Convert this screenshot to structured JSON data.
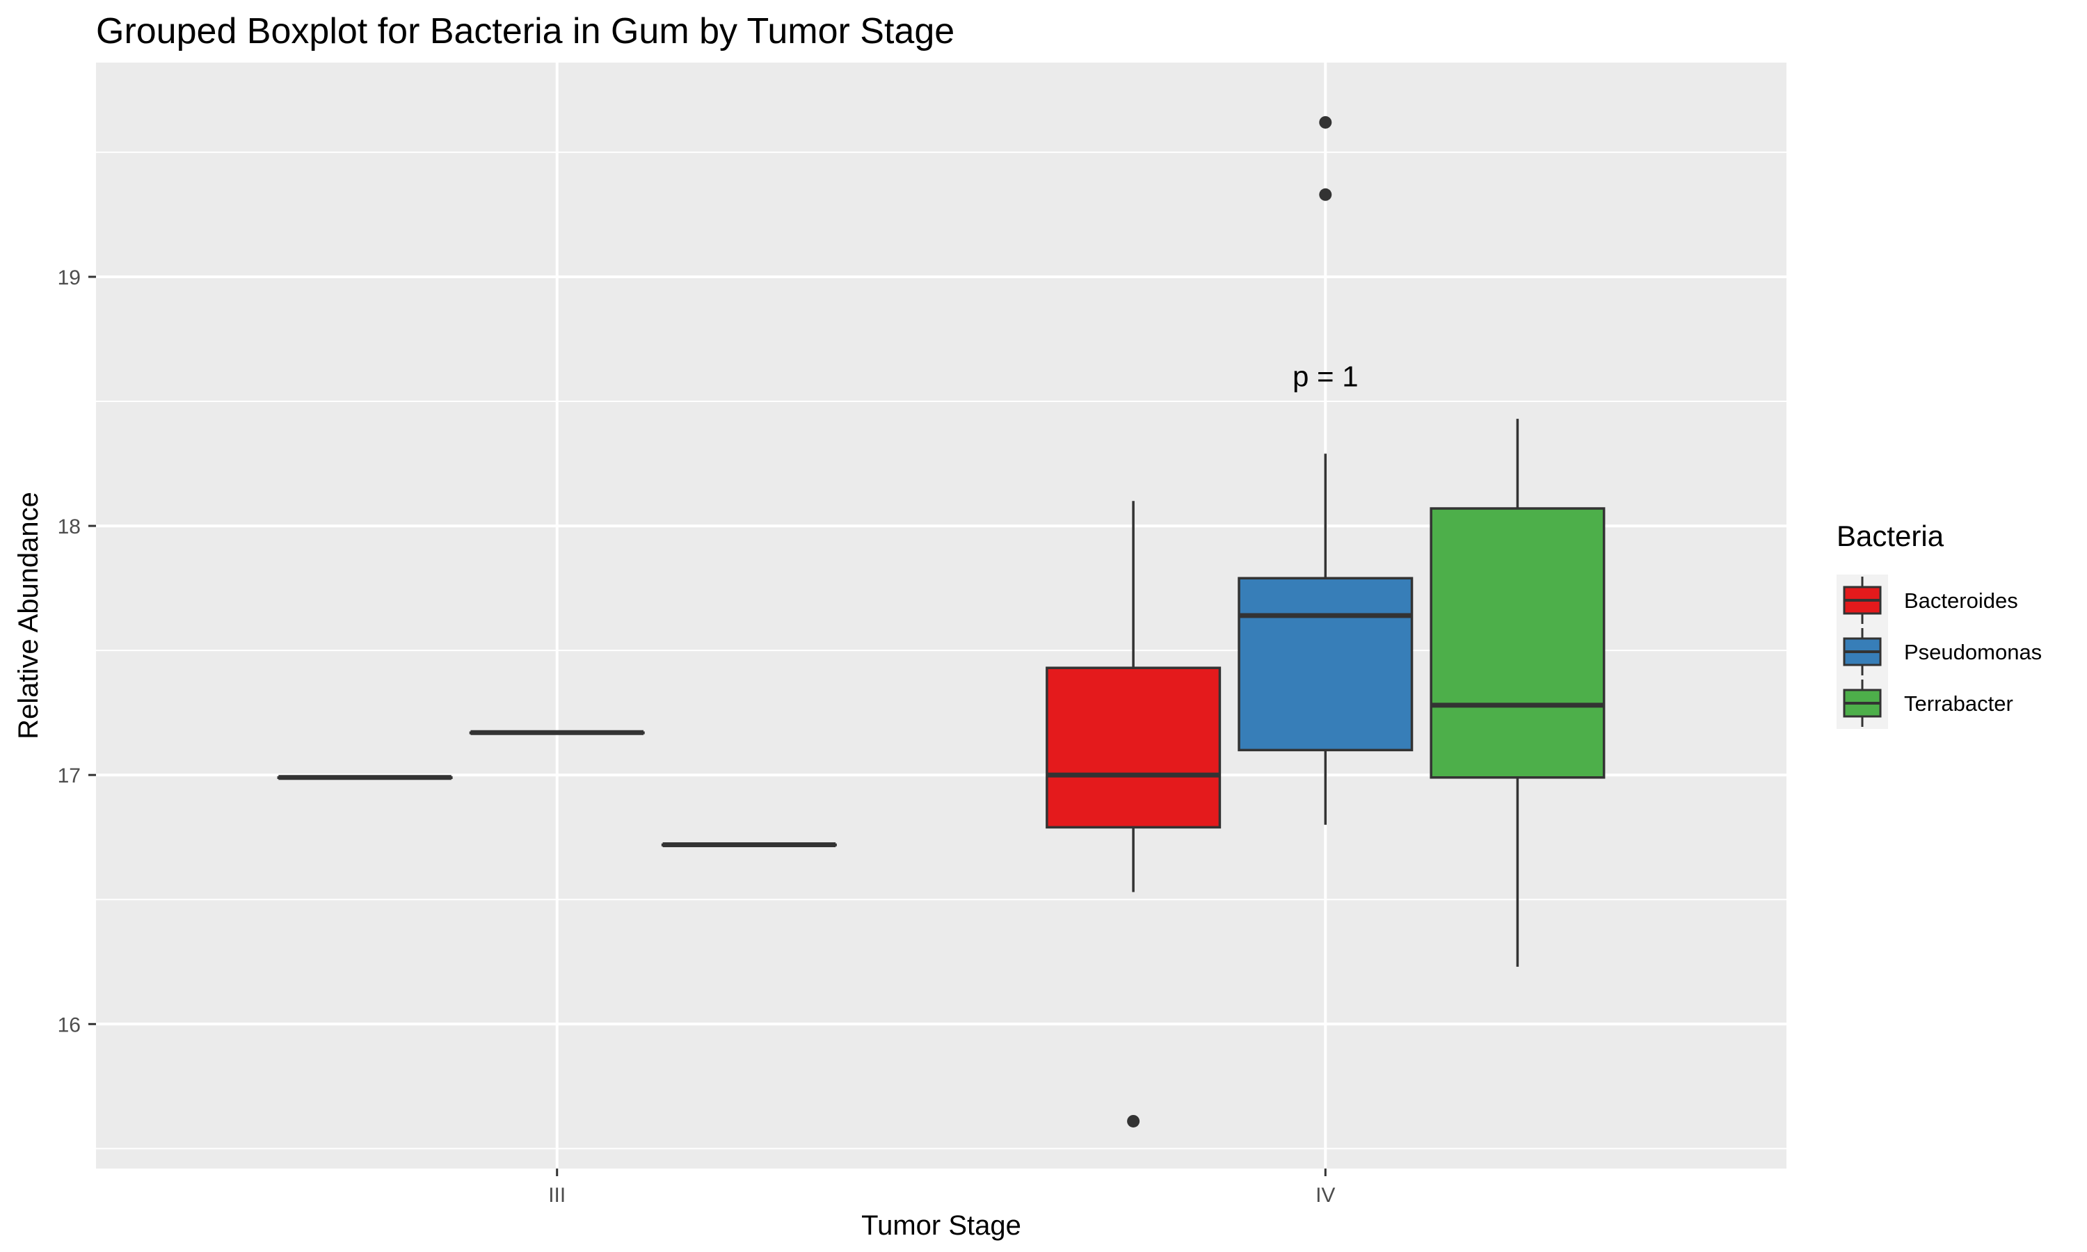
{
  "chart_data": {
    "type": "boxplot",
    "title": "Grouped Boxplot for Bacteria in Gum by Tumor Stage",
    "xlabel": "Tumor Stage",
    "ylabel": "Relative Abundance",
    "categories": [
      "III",
      "IV"
    ],
    "ylim": [
      15.42,
      19.86
    ],
    "yticks": [
      16,
      17,
      18,
      19
    ],
    "grid": true,
    "legend": {
      "title": "Bacteria",
      "position": "right"
    },
    "colors": {
      "panel": "#EBEBEB",
      "grid": "#FFFFFF",
      "box_line": "#333333"
    },
    "annotations": [
      {
        "text": "p = 1",
        "category": "IV",
        "y": 18.56
      }
    ],
    "series": [
      {
        "name": "Bacteroides",
        "color": "#E41A1C",
        "boxes": [
          {
            "category": "III",
            "min": 16.99,
            "q1": 16.99,
            "median": 16.99,
            "q3": 16.99,
            "max": 16.99,
            "outliers": []
          },
          {
            "category": "IV",
            "min": 16.53,
            "q1": 16.79,
            "median": 17.0,
            "q3": 17.43,
            "max": 18.1,
            "outliers": [
              15.61
            ]
          }
        ]
      },
      {
        "name": "Pseudomonas",
        "color": "#377EB8",
        "boxes": [
          {
            "category": "III",
            "min": 17.17,
            "q1": 17.17,
            "median": 17.17,
            "q3": 17.17,
            "max": 17.17,
            "outliers": []
          },
          {
            "category": "IV",
            "min": 16.8,
            "q1": 17.1,
            "median": 17.64,
            "q3": 17.79,
            "max": 18.29,
            "outliers": [
              19.33,
              19.62
            ]
          }
        ]
      },
      {
        "name": "Terrabacter",
        "color": "#4DAF4A",
        "boxes": [
          {
            "category": "III",
            "min": 16.72,
            "q1": 16.72,
            "median": 16.72,
            "q3": 16.72,
            "max": 16.72,
            "outliers": []
          },
          {
            "category": "IV",
            "min": 16.23,
            "q1": 16.99,
            "median": 17.28,
            "q3": 18.07,
            "max": 18.43,
            "outliers": []
          }
        ]
      }
    ]
  }
}
